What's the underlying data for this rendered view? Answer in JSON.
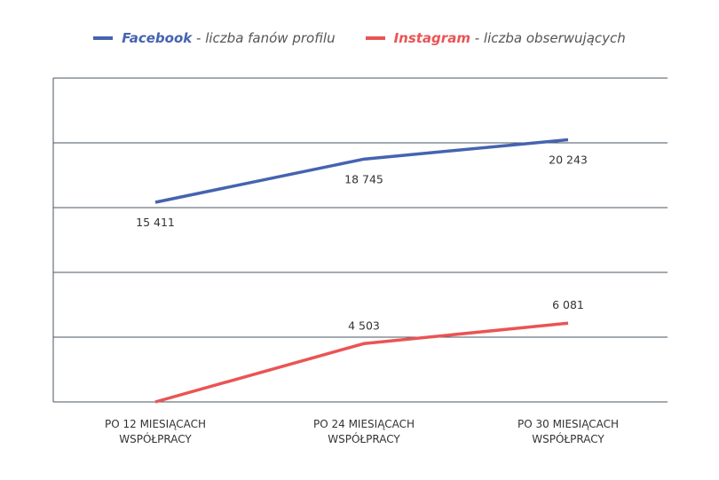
{
  "chart_data": {
    "type": "line",
    "categories": [
      [
        "PO 12 MIESIĄCACH",
        "WSPÓŁPRACY"
      ],
      [
        "PO 24 MIESIĄCACH",
        "WSPÓŁPRACY"
      ],
      [
        "PO 30 MIESIĄCACH",
        "WSPÓŁPRACY"
      ]
    ],
    "series": [
      {
        "name": "Facebook",
        "desc": " - liczba fanów profilu",
        "color": "#4563b0",
        "values": [
          15411,
          18745,
          20243
        ],
        "labels": [
          "15 411",
          "18 745",
          "20 243"
        ],
        "label_pos": "below"
      },
      {
        "name": "Instagram",
        "desc": " - liczba obserwujących",
        "color": "#ea5455",
        "values": [
          0,
          4503,
          6081
        ],
        "labels": [
          null,
          "4 503",
          "6 081"
        ],
        "label_pos": "above"
      }
    ],
    "ylim": [
      0,
      25000
    ],
    "yticks": [
      0,
      5000,
      10000,
      15000,
      20000,
      25000
    ],
    "grid": true,
    "legend": "top-center",
    "xlabel": "",
    "ylabel": "",
    "title": ""
  }
}
